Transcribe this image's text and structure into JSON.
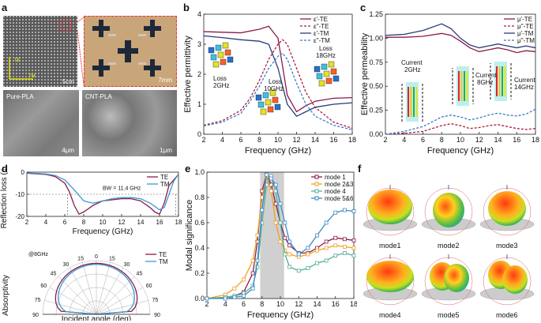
{
  "panel_labels": {
    "a": "a",
    "b": "b",
    "c": "c",
    "d": "d",
    "e": "e",
    "f": "f"
  },
  "panel_a": {
    "photo1_scale": "5cm",
    "photo2_scale": "7mm",
    "photo3_label": "Pure-PLA",
    "photo3_scale": "4μm",
    "photo4_label": "CNT-PLA",
    "photo4_scale": "1μm",
    "axis_te": "TE",
    "axis_tm": "TM"
  },
  "chart_data": [
    {
      "id": "b",
      "type": "line",
      "xlabel": "Frequency (GHz)",
      "ylabel": "Effective permittivity",
      "xlim": [
        2,
        18
      ],
      "ylim": [
        0,
        4
      ],
      "xticks": [
        2,
        4,
        6,
        8,
        10,
        12,
        14,
        16,
        18
      ],
      "yticks": [
        0,
        1,
        2,
        3,
        4
      ],
      "legend_position": "top-right",
      "series": [
        {
          "name": "ε'-TE",
          "color": "#8b1a4a",
          "dash": "solid",
          "x": [
            2,
            4,
            6,
            8,
            9,
            10,
            11,
            12,
            13,
            14,
            16,
            18
          ],
          "y": [
            3.42,
            3.4,
            3.38,
            3.5,
            3.6,
            3.2,
            1.3,
            0.75,
            0.95,
            1.1,
            1.2,
            1.22
          ]
        },
        {
          "name": "ε''-TE",
          "color": "#b01a3a",
          "dash": "dash",
          "x": [
            2,
            4,
            6,
            7,
            8,
            9,
            10,
            10.5,
            11,
            12,
            13,
            14,
            16,
            18
          ],
          "y": [
            0.3,
            0.45,
            0.8,
            1.2,
            1.8,
            2.5,
            3.0,
            3.15,
            3.0,
            2.2,
            1.4,
            0.9,
            0.4,
            0.2
          ]
        },
        {
          "name": "ε'-TM",
          "color": "#2a3a7a",
          "dash": "solid",
          "x": [
            2,
            4,
            6,
            8,
            9,
            10,
            11,
            12,
            13,
            14,
            16,
            18
          ],
          "y": [
            3.28,
            3.22,
            3.15,
            3.1,
            3.0,
            2.2,
            1.0,
            0.6,
            0.75,
            0.9,
            1.0,
            1.05
          ]
        },
        {
          "name": "ε''-TM",
          "color": "#3a7ac8",
          "dash": "dash",
          "x": [
            2,
            4,
            6,
            7,
            8,
            9,
            10,
            10.5,
            11,
            12,
            13,
            14,
            16,
            18
          ],
          "y": [
            0.28,
            0.4,
            0.7,
            1.1,
            1.6,
            2.2,
            2.6,
            2.7,
            2.5,
            1.7,
            1.0,
            0.6,
            0.3,
            0.15
          ]
        }
      ],
      "annotations": [
        "Loss 2GHz",
        "Loss 10GHz",
        "Loss 18GHz"
      ]
    },
    {
      "id": "c",
      "type": "line",
      "xlabel": "Frequency (GHz)",
      "ylabel": "Effective permeability",
      "xlim": [
        2,
        18
      ],
      "ylim": [
        0,
        1.25
      ],
      "xticks": [
        2,
        4,
        6,
        8,
        10,
        12,
        14,
        16,
        18
      ],
      "yticks": [
        0.0,
        0.25,
        0.5,
        0.75,
        1.0,
        1.25
      ],
      "legend_position": "top-right",
      "series": [
        {
          "name": "μ'-TE",
          "color": "#8b1a4a",
          "dash": "solid",
          "x": [
            2,
            4,
            6,
            8,
            9,
            10,
            11,
            12,
            13,
            14,
            15,
            16,
            17,
            18
          ],
          "y": [
            1.01,
            1.01,
            1.02,
            1.05,
            1.03,
            0.97,
            0.9,
            0.86,
            0.88,
            0.9,
            0.88,
            0.85,
            0.87,
            0.86
          ]
        },
        {
          "name": "μ''-TE",
          "color": "#b01a3a",
          "dash": "dash",
          "x": [
            2,
            4,
            6,
            7,
            8,
            9,
            10,
            11,
            12,
            13,
            14,
            15,
            16,
            17,
            18
          ],
          "y": [
            0.0,
            0.01,
            0.03,
            0.06,
            0.09,
            0.11,
            0.09,
            0.06,
            0.07,
            0.09,
            0.1,
            0.08,
            0.06,
            0.05,
            0.06
          ]
        },
        {
          "name": "μ'-TM",
          "color": "#2a3a7a",
          "dash": "solid",
          "x": [
            2,
            4,
            6,
            8,
            9,
            10,
            11,
            12,
            13,
            14,
            15,
            16,
            17,
            18
          ],
          "y": [
            1.03,
            1.04,
            1.08,
            1.15,
            1.1,
            1.0,
            0.93,
            0.9,
            0.92,
            0.94,
            0.92,
            0.9,
            0.92,
            0.9
          ]
        },
        {
          "name": "μ''-TM",
          "color": "#3a7ac8",
          "dash": "dash",
          "x": [
            2,
            4,
            6,
            7,
            8,
            9,
            10,
            11,
            12,
            13,
            14,
            15,
            16,
            17,
            18
          ],
          "y": [
            0.0,
            0.03,
            0.08,
            0.13,
            0.18,
            0.2,
            0.18,
            0.15,
            0.17,
            0.2,
            0.22,
            0.2,
            0.19,
            0.21,
            0.26
          ]
        }
      ],
      "annotations": [
        "Current 2GHz",
        "Current 8GHz",
        "Current 14GHz"
      ]
    },
    {
      "id": "d1",
      "type": "line",
      "xlabel": "Frequency (GHz)",
      "ylabel": "Reflection loss (dB)",
      "xlim": [
        2,
        18
      ],
      "ylim": [
        -20,
        0
      ],
      "xticks": [
        2,
        4,
        6,
        8,
        10,
        12,
        14,
        16,
        18
      ],
      "yticks": [
        0,
        -10,
        -20
      ],
      "legend_position": "top-right",
      "series": [
        {
          "name": "TE",
          "color": "#8b1a4a",
          "x": [
            2,
            4,
            5,
            6,
            6.5,
            7,
            7.5,
            8,
            9,
            10,
            11,
            12,
            13,
            14,
            15,
            15.5,
            16,
            16.5,
            17,
            18
          ],
          "y": [
            -0.5,
            -1,
            -2,
            -5,
            -9,
            -15,
            -19,
            -18,
            -15,
            -13,
            -12.5,
            -12,
            -12,
            -13,
            -16,
            -18,
            -19,
            -14,
            -6,
            -1
          ]
        },
        {
          "name": "TM",
          "color": "#3a9ad0",
          "x": [
            2,
            4,
            5,
            6,
            7,
            8,
            9,
            10,
            11,
            12,
            13,
            14,
            15,
            16,
            16.5,
            17,
            17.5,
            18
          ],
          "y": [
            -0.3,
            -0.8,
            -1.5,
            -3.5,
            -8,
            -13,
            -14,
            -13,
            -12,
            -11.5,
            -11.5,
            -12,
            -14,
            -17,
            -16,
            -10,
            -4,
            -1
          ]
        }
      ],
      "annotations": [
        "BW = 11.4 GHz"
      ]
    },
    {
      "id": "d2",
      "type": "line",
      "xlabel": "Incident angle (deg)",
      "ylabel": "Absorptivity",
      "tick_labels": [
        "90",
        "75",
        "60",
        "45",
        "30",
        "15",
        "0",
        "15",
        "30",
        "45",
        "60",
        "75",
        "90"
      ],
      "series": [
        {
          "name": "TE",
          "color": "#8b1a4a"
        },
        {
          "name": "TM",
          "color": "#3a9ad0"
        }
      ],
      "annotations": [
        "@8GHz"
      ]
    },
    {
      "id": "e",
      "type": "line",
      "xlabel": "Frequency (GHz)",
      "ylabel": "Modal significance",
      "xlim": [
        2,
        18
      ],
      "ylim": [
        0,
        1
      ],
      "xticks": [
        2,
        4,
        6,
        8,
        10,
        12,
        14,
        16,
        18
      ],
      "yticks": [
        0.0,
        0.2,
        0.4,
        0.6,
        0.8,
        1.0
      ],
      "legend_position": "top-right",
      "shaded_region": [
        7.8,
        10.4
      ],
      "series": [
        {
          "name": "mode 1",
          "color": "#8b1a4a",
          "x": [
            2,
            4,
            5,
            6,
            7,
            7.5,
            8,
            8.5,
            9,
            9.5,
            10,
            10.5,
            11,
            12,
            13,
            14,
            15,
            16,
            17,
            18
          ],
          "y": [
            0.0,
            0.01,
            0.02,
            0.05,
            0.2,
            0.45,
            0.85,
            0.98,
            0.9,
            0.75,
            0.6,
            0.48,
            0.42,
            0.36,
            0.36,
            0.4,
            0.45,
            0.48,
            0.47,
            0.46
          ]
        },
        {
          "name": "mode 2&3",
          "color": "#f0a020",
          "x": [
            2,
            4,
            5,
            6,
            7,
            7.5,
            8,
            8.5,
            9,
            9.5,
            10,
            10.5,
            11,
            12,
            13,
            14,
            15,
            16,
            17,
            18
          ],
          "y": [
            0.0,
            0.03,
            0.08,
            0.15,
            0.3,
            0.5,
            0.8,
            0.97,
            0.85,
            0.6,
            0.45,
            0.38,
            0.35,
            0.33,
            0.35,
            0.38,
            0.4,
            0.42,
            0.41,
            0.4
          ]
        },
        {
          "name": "mode 4",
          "color": "#55b09a",
          "x": [
            2,
            4,
            5,
            6,
            7,
            7.5,
            8,
            8.5,
            9,
            9.5,
            10,
            10.5,
            11,
            12,
            13,
            14,
            15,
            16,
            17,
            18
          ],
          "y": [
            0.0,
            0.01,
            0.02,
            0.04,
            0.1,
            0.25,
            0.6,
            0.9,
            0.97,
            0.85,
            0.6,
            0.35,
            0.25,
            0.22,
            0.24,
            0.28,
            0.3,
            0.34,
            0.36,
            0.34
          ]
        },
        {
          "name": "mode 5&6",
          "color": "#3a8ac8",
          "x": [
            2,
            4,
            5,
            6,
            7,
            7.5,
            8,
            8.5,
            9,
            9.5,
            10,
            10.5,
            11,
            12,
            13,
            14,
            15,
            16,
            17,
            18
          ],
          "y": [
            0.0,
            0.0,
            0.01,
            0.02,
            0.08,
            0.3,
            0.7,
            0.98,
            0.95,
            0.9,
            0.75,
            0.6,
            0.45,
            0.35,
            0.4,
            0.5,
            0.6,
            0.68,
            0.7,
            0.69
          ]
        }
      ]
    }
  ],
  "panel_f": {
    "modes": [
      "mode1",
      "mode2",
      "mode3",
      "mode4",
      "mode5",
      "mode6"
    ]
  }
}
